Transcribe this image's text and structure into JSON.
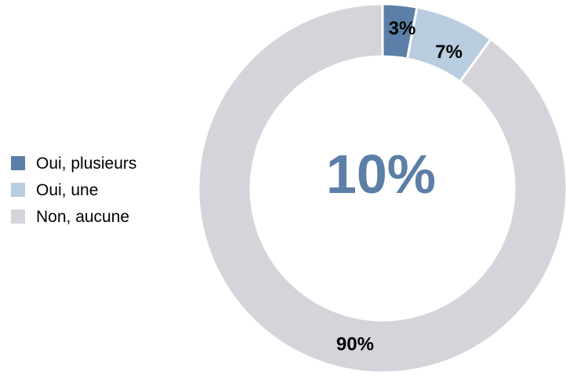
{
  "chart_data": {
    "type": "pie",
    "subtype": "donut",
    "categories": [
      "Oui, plusieurs",
      "Oui, une",
      "Non, aucune"
    ],
    "values": [
      3,
      7,
      90
    ],
    "value_labels": [
      "3%",
      "7%",
      "90%"
    ],
    "center_label": "10%",
    "colors": [
      "#5b7fa6",
      "#b9cde1",
      "#d6d4db"
    ],
    "center_label_color": "#5b7fa6",
    "legend_position": "left",
    "title": ""
  }
}
